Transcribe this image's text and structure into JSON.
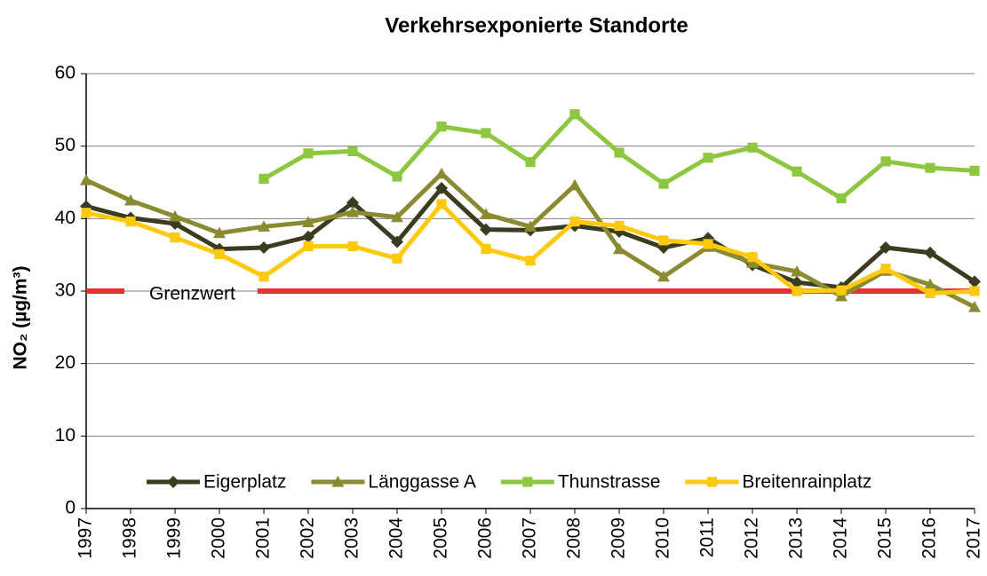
{
  "chart_data": {
    "type": "line",
    "title": "Verkehrsexponierte Standorte",
    "y_label": "NO₂ (µg/m³)",
    "categories": [
      "1997",
      "1998",
      "1999",
      "2000",
      "2001",
      "2002",
      "2003",
      "2004",
      "2005",
      "2006",
      "2007",
      "2008",
      "2009",
      "2010",
      "2011",
      "2012",
      "2013",
      "2014",
      "2015",
      "2016",
      "2017"
    ],
    "series": [
      {
        "name": "Eigerplatz",
        "color": "#3b3b1f",
        "marker": "diamond",
        "values": [
          41.7,
          40.1,
          39.3,
          35.8,
          36,
          37.5,
          42.2,
          36.8,
          44.2,
          38.5,
          38.4,
          39,
          38.2,
          36,
          37.3,
          33.6,
          31.2,
          30.5,
          36,
          35.3,
          31.3
        ]
      },
      {
        "name": "Länggasse A",
        "color": "#8a8a30",
        "marker": "triangle",
        "values": [
          45.3,
          42.5,
          40.3,
          38,
          38.9,
          39.5,
          40.9,
          40.2,
          46.2,
          40.6,
          38.9,
          44.6,
          35.8,
          32,
          36.1,
          33.9,
          32.7,
          29.3,
          32.8,
          30.9,
          27.8
        ]
      },
      {
        "name": "Thunstrasse",
        "color": "#8dc63f",
        "marker": "square",
        "values": [
          null,
          null,
          null,
          null,
          45.5,
          49,
          49.3,
          45.8,
          52.7,
          51.8,
          47.8,
          54.4,
          49.1,
          44.8,
          48.4,
          49.8,
          46.5,
          42.8,
          47.9,
          47,
          46.6
        ]
      },
      {
        "name": "Breitenrainplatz",
        "color": "#ffc90e",
        "marker": "square",
        "values": [
          40.8,
          39.6,
          37.4,
          35.1,
          32,
          36.2,
          36.2,
          34.5,
          42,
          35.8,
          34.2,
          39.6,
          39,
          37,
          36.5,
          34.7,
          30,
          30.1,
          33.1,
          29.7,
          30
        ]
      }
    ],
    "limit": {
      "label": "Grenzwert",
      "value": 30,
      "color": "#e8312f"
    },
    "ylim": [
      0,
      60
    ],
    "yticks": [
      0,
      10,
      20,
      30,
      40,
      50,
      60
    ],
    "grid": true,
    "legend": "bottom"
  }
}
